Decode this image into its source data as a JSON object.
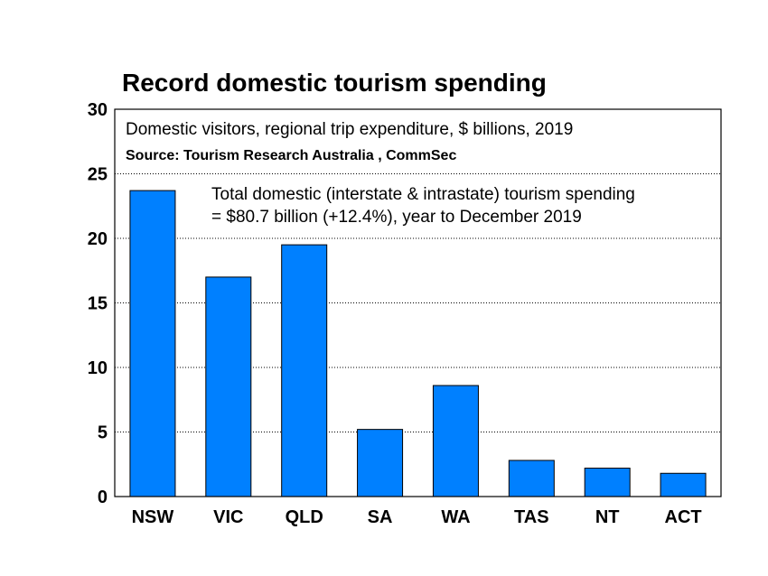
{
  "chart_data": {
    "type": "bar",
    "title": "Record domestic tourism spending",
    "subtitle": "Domestic visitors, regional trip expenditure, $ billions, 2019",
    "source": "Source: Tourism Research Australia , CommSec",
    "annotation": [
      "Total domestic (interstate & intrastate) tourism spending",
      "= $80.7 billion (+12.4%), year to December 2019"
    ],
    "categories": [
      "NSW",
      "VIC",
      "QLD",
      "SA",
      "WA",
      "TAS",
      "NT",
      "ACT"
    ],
    "values": [
      23.7,
      17.0,
      19.5,
      5.2,
      8.6,
      2.8,
      2.2,
      1.8
    ],
    "ylim": [
      0,
      30
    ],
    "yticks": [
      0,
      5,
      10,
      15,
      20,
      25,
      30
    ],
    "grid": true,
    "bar_color": "#0080ff",
    "xlabel": "",
    "ylabel": ""
  }
}
